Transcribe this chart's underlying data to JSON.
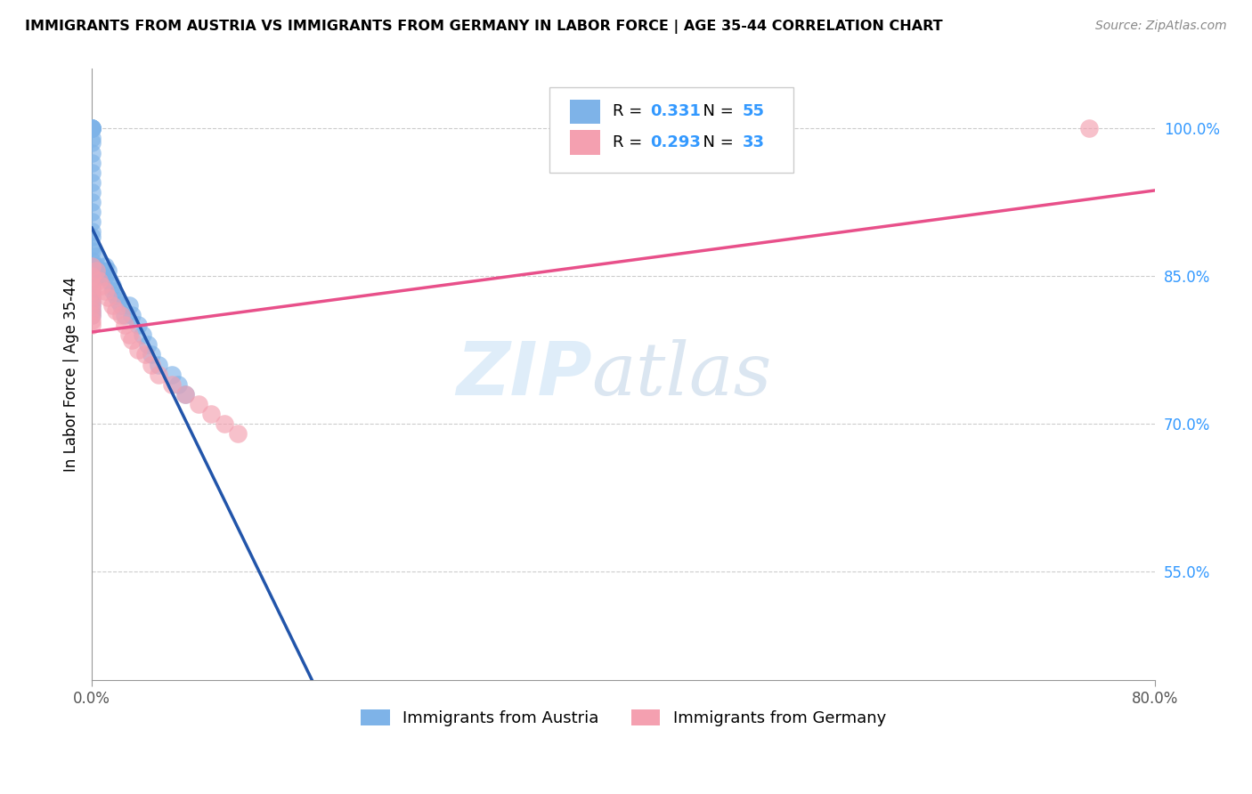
{
  "title": "IMMIGRANTS FROM AUSTRIA VS IMMIGRANTS FROM GERMANY IN LABOR FORCE | AGE 35-44 CORRELATION CHART",
  "source": "Source: ZipAtlas.com",
  "ylabel": "In Labor Force | Age 35-44",
  "ytick_labels": [
    "55.0%",
    "70.0%",
    "85.0%",
    "100.0%"
  ],
  "ytick_values": [
    0.55,
    0.7,
    0.85,
    1.0
  ],
  "xmin": 0.0,
  "xmax": 0.8,
  "ymin": 0.44,
  "ymax": 1.06,
  "austria_color": "#7eb3e8",
  "germany_color": "#f4a0b0",
  "austria_line_color": "#2255aa",
  "germany_line_color": "#e8508a",
  "R_austria": 0.331,
  "N_austria": 55,
  "R_germany": 0.293,
  "N_germany": 33,
  "legend_label_austria": "Immigrants from Austria",
  "legend_label_germany": "Immigrants from Germany",
  "watermark_zip": "ZIP",
  "watermark_atlas": "atlas",
  "austria_x": [
    0.0,
    0.0,
    0.0,
    0.0,
    0.0,
    0.0,
    0.0,
    0.0,
    0.0,
    0.0,
    0.0,
    0.0,
    0.0,
    0.0,
    0.0,
    0.0,
    0.0,
    0.0,
    0.0,
    0.0,
    0.0,
    0.0,
    0.0,
    0.0,
    0.0,
    0.0,
    0.0,
    0.0,
    0.0,
    0.0,
    0.003,
    0.003,
    0.005,
    0.007,
    0.007,
    0.01,
    0.01,
    0.012,
    0.013,
    0.015,
    0.016,
    0.018,
    0.02,
    0.022,
    0.025,
    0.028,
    0.03,
    0.035,
    0.038,
    0.042,
    0.045,
    0.05,
    0.06,
    0.065,
    0.07
  ],
  "austria_y": [
    1.0,
    1.0,
    1.0,
    1.0,
    1.0,
    0.99,
    0.985,
    0.975,
    0.965,
    0.955,
    0.945,
    0.935,
    0.925,
    0.915,
    0.905,
    0.895,
    0.89,
    0.88,
    0.875,
    0.865,
    0.855,
    0.85,
    0.845,
    0.84,
    0.835,
    0.83,
    0.825,
    0.82,
    0.815,
    0.81,
    0.87,
    0.86,
    0.85,
    0.855,
    0.85,
    0.86,
    0.85,
    0.855,
    0.845,
    0.84,
    0.835,
    0.83,
    0.825,
    0.82,
    0.81,
    0.82,
    0.81,
    0.8,
    0.79,
    0.78,
    0.77,
    0.76,
    0.75,
    0.74,
    0.73
  ],
  "germany_x": [
    0.0,
    0.0,
    0.0,
    0.0,
    0.0,
    0.0,
    0.0,
    0.0,
    0.0,
    0.0,
    0.0,
    0.003,
    0.005,
    0.007,
    0.01,
    0.012,
    0.015,
    0.018,
    0.022,
    0.025,
    0.028,
    0.03,
    0.035,
    0.04,
    0.045,
    0.05,
    0.06,
    0.07,
    0.08,
    0.09,
    0.1,
    0.11,
    0.75
  ],
  "germany_y": [
    0.86,
    0.85,
    0.84,
    0.835,
    0.83,
    0.825,
    0.82,
    0.815,
    0.81,
    0.805,
    0.8,
    0.855,
    0.845,
    0.84,
    0.835,
    0.828,
    0.82,
    0.815,
    0.81,
    0.8,
    0.79,
    0.785,
    0.775,
    0.77,
    0.76,
    0.75,
    0.74,
    0.73,
    0.72,
    0.71,
    0.7,
    0.69,
    1.0
  ]
}
